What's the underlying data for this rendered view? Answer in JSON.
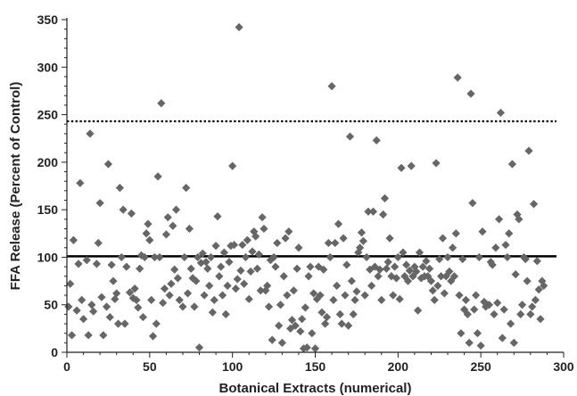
{
  "chart_data": {
    "type": "scatter",
    "title": "",
    "xlabel": "Botanical Extracts (numerical)",
    "ylabel": "FFA Release (Percent of Control)",
    "xlim": [
      0,
      300
    ],
    "ylim": [
      0,
      350
    ],
    "x_ticks": [
      "0",
      "50",
      "100",
      "150",
      "200",
      "250",
      "300"
    ],
    "y_ticks": [
      "0",
      "50",
      "100",
      "150",
      "200",
      "250",
      "300",
      "350"
    ],
    "grid": false,
    "legend": "none",
    "marker": "diamond",
    "marker_color": "#666666",
    "reference_lines": [
      {
        "style": "solid",
        "y": 101,
        "color": "#000000"
      },
      {
        "style": "dotted",
        "y": 243,
        "color": "#000000"
      }
    ],
    "series": [
      {
        "points": [
          [
            1,
            48
          ],
          [
            2,
            72
          ],
          [
            3,
            18
          ],
          [
            4,
            118
          ],
          [
            6,
            44
          ],
          [
            7,
            93
          ],
          [
            8,
            178
          ],
          [
            9,
            55
          ],
          [
            10,
            35
          ],
          [
            12,
            97
          ],
          [
            13,
            18
          ],
          [
            14,
            230
          ],
          [
            15,
            50
          ],
          [
            16,
            43
          ],
          [
            18,
            93
          ],
          [
            19,
            115
          ],
          [
            20,
            157
          ],
          [
            21,
            58
          ],
          [
            22,
            18
          ],
          [
            24,
            48
          ],
          [
            25,
            198
          ],
          [
            26,
            37
          ],
          [
            27,
            92
          ],
          [
            28,
            75
          ],
          [
            29,
            56
          ],
          [
            30,
            62
          ],
          [
            31,
            30
          ],
          [
            32,
            173
          ],
          [
            33,
            100
          ],
          [
            34,
            150
          ],
          [
            35,
            30
          ],
          [
            36,
            90
          ],
          [
            38,
            63
          ],
          [
            39,
            146
          ],
          [
            40,
            57
          ],
          [
            41,
            67
          ],
          [
            42,
            55
          ],
          [
            43,
            47
          ],
          [
            44,
            88
          ],
          [
            45,
            102
          ],
          [
            46,
            37
          ],
          [
            47,
            100
          ],
          [
            48,
            125
          ],
          [
            49,
            135
          ],
          [
            50,
            118
          ],
          [
            51,
            55
          ],
          [
            52,
            17
          ],
          [
            53,
            100
          ],
          [
            54,
            30
          ],
          [
            55,
            185
          ],
          [
            56,
            100
          ],
          [
            57,
            262
          ],
          [
            58,
            52
          ],
          [
            59,
            67
          ],
          [
            60,
            124
          ],
          [
            61,
            142
          ],
          [
            62,
            60
          ],
          [
            63,
            72
          ],
          [
            64,
            133
          ],
          [
            65,
            87
          ],
          [
            66,
            150
          ],
          [
            67,
            78
          ],
          [
            68,
            55
          ],
          [
            70,
            48
          ],
          [
            71,
            100
          ],
          [
            72,
            173
          ],
          [
            73,
            62
          ],
          [
            74,
            130
          ],
          [
            75,
            88
          ],
          [
            76,
            78
          ],
          [
            77,
            48
          ],
          [
            78,
            75
          ],
          [
            79,
            100
          ],
          [
            80,
            5
          ],
          [
            81,
            94
          ],
          [
            82,
            104
          ],
          [
            83,
            60
          ],
          [
            84,
            95
          ],
          [
            85,
            88
          ],
          [
            86,
            70
          ],
          [
            87,
            100
          ],
          [
            88,
            42
          ],
          [
            89,
            55
          ],
          [
            90,
            112
          ],
          [
            91,
            143
          ],
          [
            92,
            80
          ],
          [
            93,
            90
          ],
          [
            94,
            60
          ],
          [
            95,
            105
          ],
          [
            96,
            40
          ],
          [
            97,
            70
          ],
          [
            98,
            95
          ],
          [
            99,
            112
          ],
          [
            100,
            196
          ],
          [
            101,
            113
          ],
          [
            102,
            67
          ],
          [
            103,
            77
          ],
          [
            104,
            342
          ],
          [
            105,
            86
          ],
          [
            106,
            113
          ],
          [
            107,
            72
          ],
          [
            108,
            100
          ],
          [
            109,
            118
          ],
          [
            110,
            56
          ],
          [
            111,
            85
          ],
          [
            112,
            106
          ],
          [
            113,
            127
          ],
          [
            114,
            122
          ],
          [
            115,
            88
          ],
          [
            116,
            103
          ],
          [
            117,
            65
          ],
          [
            118,
            142
          ],
          [
            119,
            130
          ],
          [
            120,
            65
          ],
          [
            121,
            70
          ],
          [
            122,
            48
          ],
          [
            123,
            97
          ],
          [
            124,
            13
          ],
          [
            125,
            100
          ],
          [
            126,
            90
          ],
          [
            127,
            115
          ],
          [
            128,
            28
          ],
          [
            129,
            50
          ],
          [
            130,
            10
          ],
          [
            131,
            80
          ],
          [
            132,
            120
          ],
          [
            133,
            60
          ],
          [
            134,
            127
          ],
          [
            135,
            25
          ],
          [
            136,
            34
          ],
          [
            137,
            65
          ],
          [
            138,
            28
          ],
          [
            139,
            88
          ],
          [
            140,
            110
          ],
          [
            141,
            22
          ],
          [
            142,
            35
          ],
          [
            143,
            4
          ],
          [
            144,
            47
          ],
          [
            145,
            5
          ],
          [
            146,
            80
          ],
          [
            147,
            90
          ],
          [
            148,
            20
          ],
          [
            149,
            62
          ],
          [
            150,
            4
          ],
          [
            151,
            56
          ],
          [
            152,
            90
          ],
          [
            153,
            60
          ],
          [
            154,
            42
          ],
          [
            155,
            87
          ],
          [
            156,
            30
          ],
          [
            157,
            37
          ],
          [
            158,
            115
          ],
          [
            159,
            100
          ],
          [
            160,
            280
          ],
          [
            161,
            55
          ],
          [
            162,
            115
          ],
          [
            163,
            70
          ],
          [
            164,
            135
          ],
          [
            165,
            40
          ],
          [
            166,
            30
          ],
          [
            167,
            120
          ],
          [
            168,
            60
          ],
          [
            169,
            92
          ],
          [
            170,
            28
          ],
          [
            171,
            227
          ],
          [
            172,
            75
          ],
          [
            173,
            40
          ],
          [
            174,
            55
          ],
          [
            175,
            64
          ],
          [
            176,
            105
          ],
          [
            177,
            110
          ],
          [
            178,
            126
          ],
          [
            179,
            117
          ],
          [
            180,
            60
          ],
          [
            181,
            100
          ],
          [
            182,
            148
          ],
          [
            183,
            87
          ],
          [
            184,
            70
          ],
          [
            185,
            148
          ],
          [
            186,
            90
          ],
          [
            187,
            223
          ],
          [
            188,
            80
          ],
          [
            189,
            87
          ],
          [
            190,
            55
          ],
          [
            191,
            145
          ],
          [
            192,
            162
          ],
          [
            193,
            88
          ],
          [
            194,
            95
          ],
          [
            195,
            120
          ],
          [
            196,
            80
          ],
          [
            197,
            60
          ],
          [
            198,
            90
          ],
          [
            199,
            78
          ],
          [
            200,
            100
          ],
          [
            201,
            56
          ],
          [
            202,
            194
          ],
          [
            203,
            105
          ],
          [
            204,
            80
          ],
          [
            205,
            92
          ],
          [
            206,
            75
          ],
          [
            207,
            86
          ],
          [
            208,
            196
          ],
          [
            209,
            80
          ],
          [
            210,
            90
          ],
          [
            211,
            85
          ],
          [
            212,
            44
          ],
          [
            213,
            105
          ],
          [
            214,
            78
          ],
          [
            215,
            90
          ],
          [
            216,
            80
          ],
          [
            217,
            96
          ],
          [
            218,
            80
          ],
          [
            219,
            88
          ],
          [
            220,
            75
          ],
          [
            221,
            65
          ],
          [
            222,
            55
          ],
          [
            223,
            199
          ],
          [
            224,
            70
          ],
          [
            225,
            98
          ],
          [
            226,
            80
          ],
          [
            227,
            120
          ],
          [
            228,
            62
          ],
          [
            229,
            80
          ],
          [
            230,
            100
          ],
          [
            231,
            85
          ],
          [
            232,
            75
          ],
          [
            233,
            110
          ],
          [
            234,
            80
          ],
          [
            235,
            125
          ],
          [
            236,
            289
          ],
          [
            237,
            60
          ],
          [
            238,
            20
          ],
          [
            239,
            98
          ],
          [
            240,
            45
          ],
          [
            241,
            55
          ],
          [
            242,
            40
          ],
          [
            243,
            10
          ],
          [
            244,
            272
          ],
          [
            245,
            157
          ],
          [
            246,
            45
          ],
          [
            247,
            60
          ],
          [
            248,
            20
          ],
          [
            249,
            100
          ],
          [
            250,
            7
          ],
          [
            251,
            127
          ],
          [
            252,
            53
          ],
          [
            253,
            48
          ],
          [
            254,
            50
          ],
          [
            255,
            50
          ],
          [
            256,
            95
          ],
          [
            257,
            92
          ],
          [
            258,
            40
          ],
          [
            259,
            110
          ],
          [
            260,
            52
          ],
          [
            261,
            140
          ],
          [
            262,
            252
          ],
          [
            263,
            15
          ],
          [
            264,
            45
          ],
          [
            265,
            113
          ],
          [
            266,
            100
          ],
          [
            267,
            125
          ],
          [
            268,
            30
          ],
          [
            269,
            198
          ],
          [
            270,
            10
          ],
          [
            271,
            82
          ],
          [
            272,
            145
          ],
          [
            273,
            140
          ],
          [
            274,
            40
          ],
          [
            275,
            50
          ],
          [
            276,
            100
          ],
          [
            277,
            98
          ],
          [
            278,
            75
          ],
          [
            279,
            212
          ],
          [
            280,
            40
          ],
          [
            281,
            48
          ],
          [
            282,
            156
          ],
          [
            283,
            55
          ],
          [
            284,
            96
          ],
          [
            285,
            66
          ],
          [
            286,
            35
          ],
          [
            287,
            75
          ],
          [
            288,
            70
          ]
        ]
      }
    ]
  }
}
